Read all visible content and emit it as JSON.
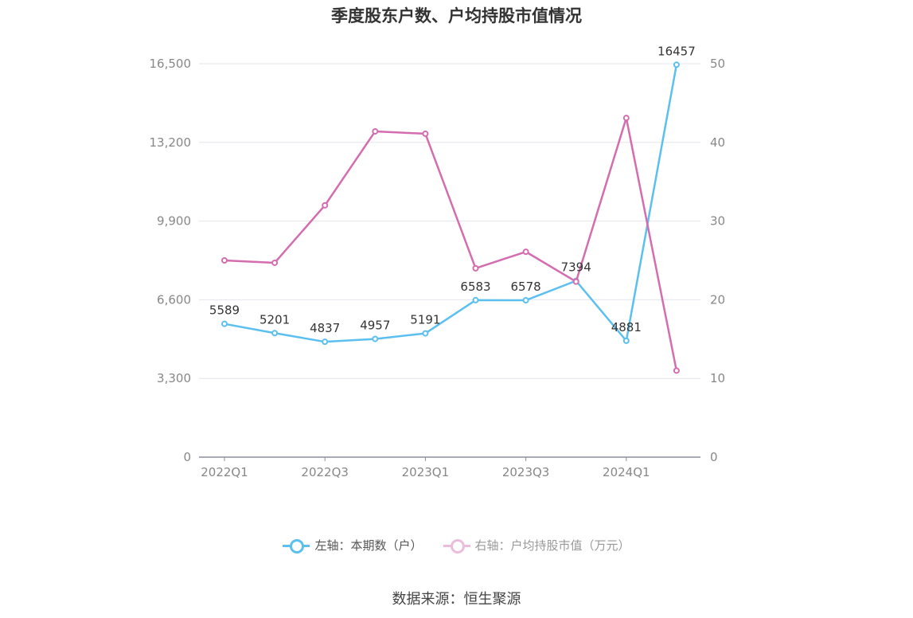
{
  "chart_data": {
    "type": "line",
    "title": "季度股东户数、户均持股市值情况",
    "categories": [
      "2022Q1",
      "2022Q2",
      "2022Q3",
      "2022Q4",
      "2023Q1",
      "2023Q2",
      "2023Q3",
      "2023Q4",
      "2024Q1",
      "2024Q2"
    ],
    "x_tick_labels": [
      "2022Q1",
      "2022Q3",
      "2023Q1",
      "2023Q3",
      "2024Q1"
    ],
    "series": [
      {
        "name": "左轴：本期数（户）",
        "axis": "left",
        "color": "#5bbff0",
        "values": [
          5589,
          5201,
          4837,
          4957,
          5191,
          6583,
          6578,
          7394,
          4881,
          16457
        ],
        "data_labels": [
          "5589",
          "5201",
          "4837",
          "4957",
          "5191",
          "6583",
          "6578",
          "7394",
          "4881",
          "16457"
        ]
      },
      {
        "name": "右轴：户均持股市值（万元）",
        "axis": "right",
        "color": "#d46db0",
        "values": [
          25.0,
          24.7,
          32.0,
          41.4,
          41.1,
          24.0,
          26.1,
          22.3,
          43.1,
          11.0
        ]
      }
    ],
    "left_axis": {
      "ylim": [
        0,
        16500
      ],
      "ticks": [
        0,
        3300,
        6600,
        9900,
        13200,
        16500
      ],
      "tick_labels": [
        "0",
        "3,300",
        "6,600",
        "9,900",
        "13,200",
        "16,500"
      ]
    },
    "right_axis": {
      "ylim": [
        0,
        50
      ],
      "ticks": [
        0,
        10,
        20,
        30,
        40,
        50
      ],
      "tick_labels": [
        "0",
        "10",
        "20",
        "30",
        "40",
        "50"
      ]
    },
    "grid": true,
    "legend_position": "bottom"
  },
  "source": "数据来源：恒生聚源"
}
